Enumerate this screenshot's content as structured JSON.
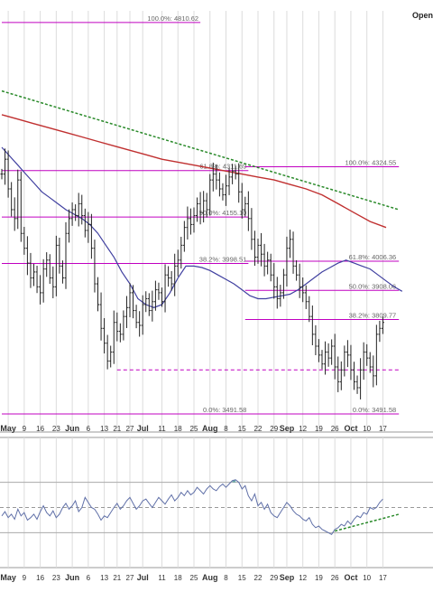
{
  "corner_label": "Open",
  "colors": {
    "fib": "#c000c0",
    "ma_fast": "#4040a0",
    "ma_slow": "#c03030",
    "trend": "#2a8a2a",
    "price": "#222222",
    "osc": "#6070a8",
    "osc_fill": "#4a9a9a",
    "grid": "#dcdcdc"
  },
  "chart_data": [
    {
      "type": "line",
      "chart_style": "OHLC bar price chart with Fibonacci retracement levels, moving averages and a dashed trendline",
      "price_range": [
        3455,
        4850
      ],
      "x_tick_labels": [
        {
          "label": "May",
          "bar": 2
        },
        {
          "label": "9",
          "bar": 7
        },
        {
          "label": "16",
          "bar": 12
        },
        {
          "label": "23",
          "bar": 17
        },
        {
          "label": "Jun",
          "bar": 22
        },
        {
          "label": "6",
          "bar": 27
        },
        {
          "label": "13",
          "bar": 32
        },
        {
          "label": "21",
          "bar": 36
        },
        {
          "label": "27",
          "bar": 40
        },
        {
          "label": "Jul",
          "bar": 44
        },
        {
          "label": "11",
          "bar": 50
        },
        {
          "label": "18",
          "bar": 55
        },
        {
          "label": "25",
          "bar": 60
        },
        {
          "label": "Aug",
          "bar": 65
        },
        {
          "label": "8",
          "bar": 70
        },
        {
          "label": "15",
          "bar": 75
        },
        {
          "label": "22",
          "bar": 80
        },
        {
          "label": "29",
          "bar": 85
        },
        {
          "label": "Sep",
          "bar": 89
        },
        {
          "label": "12",
          "bar": 94
        },
        {
          "label": "19",
          "bar": 99
        },
        {
          "label": "26",
          "bar": 104
        },
        {
          "label": "Oct",
          "bar": 109
        },
        {
          "label": "10",
          "bar": 114
        },
        {
          "label": "17",
          "bar": 119
        }
      ],
      "fib_sets": [
        {
          "bar_start": 0,
          "bar_end": 62,
          "levels": [
            {
              "label": "100.0%: 4810.62",
              "value": 4810.62
            }
          ]
        },
        {
          "bar_start": 0,
          "bar_end": 77,
          "levels": [
            {
              "label": "61.8%: 4311.69",
              "value": 4311.69
            },
            {
              "label": "50.0%: 4155.10",
              "value": 4155.1
            },
            {
              "label": "38.2%: 3998.51",
              "value": 3998.51
            },
            {
              "label": "0.0%: 3491.58",
              "value": 3491.58
            }
          ]
        },
        {
          "bar_start": 76,
          "bar_end": 124,
          "levels": [
            {
              "label": "100.0%: 4324.55",
              "value": 4324.55
            },
            {
              "label": "61.8%: 4006.36",
              "value": 4006.36
            },
            {
              "label": "50.0%: 3908.06",
              "value": 3908.06
            },
            {
              "label": "38.2%: 3809.77",
              "value": 3809.77
            },
            {
              "label": "0.0%: 3491.58",
              "value": 3491.58
            }
          ]
        }
      ],
      "support_dashed": [
        {
          "value": 3640,
          "bar_start": 36,
          "bar_end": 124
        }
      ],
      "closes": [
        4300,
        4350,
        4250,
        4180,
        4150,
        4280,
        4100,
        4050,
        4000,
        3950,
        3970,
        3920,
        3900,
        3980,
        4010,
        3950,
        3920,
        4060,
        3990,
        3950,
        4100,
        4150,
        4180,
        4160,
        4200,
        4160,
        4110,
        4130,
        4050,
        3930,
        3860,
        3780,
        3730,
        3670,
        3700,
        3800,
        3770,
        3760,
        3820,
        3850,
        3900,
        3840,
        3800,
        3790,
        3860,
        3880,
        3840,
        3870,
        3910,
        3900,
        3870,
        3960,
        3950,
        3930,
        3990,
        4010,
        4060,
        4120,
        4150,
        4130,
        4160,
        4200,
        4170,
        4210,
        4180,
        4280,
        4300,
        4280,
        4250,
        4230,
        4260,
        4290,
        4310,
        4300,
        4240,
        4180,
        4200,
        4150,
        4080,
        4020,
        4060,
        4030,
        3990,
        4010,
        3960,
        3920,
        3880,
        3900,
        3960,
        4050,
        4080,
        3990,
        3960,
        3920,
        3900,
        3870,
        3820,
        3760,
        3720,
        3690,
        3660,
        3700,
        3680,
        3720,
        3650,
        3600,
        3640,
        3700,
        3690,
        3640,
        3600,
        3580,
        3640,
        3700,
        3680,
        3650,
        3620,
        3760,
        3780,
        3800
      ],
      "ma_fast_values": [
        4390,
        4360,
        4330,
        4300,
        4270,
        4240,
        4220,
        4200,
        4180,
        4165,
        4150,
        4130,
        4100,
        4060,
        4020,
        3970,
        3930,
        3880,
        3860,
        3850,
        3860,
        3900,
        3950,
        3990,
        3990,
        3985,
        3975,
        3960,
        3945,
        3930,
        3910,
        3890,
        3880,
        3880,
        3885,
        3890,
        3895,
        3910,
        3930,
        3950,
        3970,
        3985,
        4000,
        4010,
        4000,
        3990,
        3980,
        3960,
        3940,
        3920,
        3905
      ],
      "ma_fast_bar_start": 0,
      "ma_fast_bar_step": 2.5,
      "ma_slow_values": [
        4500,
        4485,
        4470,
        4455,
        4440,
        4425,
        4410,
        4395,
        4380,
        4365,
        4350,
        4340,
        4330,
        4320,
        4310,
        4300,
        4290,
        4280,
        4265,
        4250,
        4230,
        4200,
        4170,
        4140,
        4120
      ],
      "ma_slow_bar_start": 0,
      "ma_slow_bar_step": 5,
      "trendline": {
        "from": {
          "bar": 0,
          "value": 4580
        },
        "to": {
          "bar": 124,
          "value": 4180
        }
      }
    },
    {
      "type": "line",
      "chart_style": "oscillator indicator panel",
      "range": [
        0,
        100
      ],
      "reference_lines": [
        80,
        50,
        20
      ],
      "values": [
        40,
        45,
        38,
        42,
        36,
        48,
        40,
        44,
        35,
        38,
        42,
        36,
        45,
        52,
        44,
        40,
        46,
        38,
        42,
        50,
        55,
        48,
        52,
        58,
        45,
        50,
        62,
        56,
        50,
        48,
        42,
        35,
        40,
        38,
        44,
        50,
        55,
        48,
        52,
        58,
        62,
        55,
        48,
        52,
        58,
        60,
        55,
        50,
        56,
        62,
        58,
        54,
        60,
        65,
        58,
        62,
        68,
        64,
        70,
        65,
        68,
        74,
        70,
        66,
        72,
        76,
        72,
        70,
        75,
        78,
        74,
        78,
        82,
        83,
        80,
        72,
        76,
        64,
        58,
        66,
        52,
        56,
        48,
        54,
        44,
        40,
        38,
        44,
        50,
        56,
        52,
        46,
        42,
        40,
        36,
        34,
        38,
        30,
        26,
        28,
        24,
        22,
        20,
        18,
        24,
        26,
        30,
        28,
        34,
        30,
        36,
        40,
        38,
        44,
        42,
        50,
        48,
        50,
        56,
        60
      ],
      "support_trend": {
        "from": {
          "bar": 104,
          "value": 22
        },
        "to": {
          "bar": 124,
          "value": 42
        }
      }
    }
  ]
}
